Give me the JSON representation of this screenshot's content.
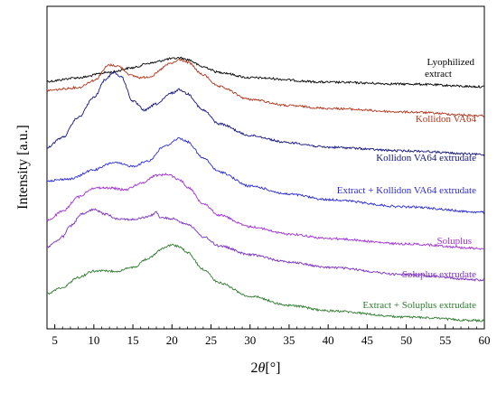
{
  "chart_data": {
    "type": "line",
    "title": "",
    "xlabel": "2θ[°]",
    "xlabel_parts": {
      "prefix": "2",
      "theta": "θ",
      "unit": "[°]"
    },
    "ylabel": "Intensity [a.u.]",
    "xlim": [
      4,
      60
    ],
    "xticks": [
      5,
      10,
      15,
      20,
      25,
      30,
      35,
      40,
      45,
      50,
      55,
      60
    ],
    "yticks_visible": false,
    "grid": false,
    "legend": "labels-beside-curves",
    "series": [
      {
        "name": "Lyophilized extract",
        "label_lines": [
          "Lyophilized",
          "extract"
        ],
        "color": "#000000",
        "points": [
          [
            4,
            90
          ],
          [
            8,
            86
          ],
          [
            12,
            80
          ],
          [
            15,
            75
          ],
          [
            17,
            70
          ],
          [
            20,
            65
          ],
          [
            21,
            64
          ],
          [
            22,
            66
          ],
          [
            24,
            74
          ],
          [
            26,
            80
          ],
          [
            30,
            86
          ],
          [
            40,
            91
          ],
          [
            50,
            93
          ],
          [
            60,
            96
          ]
        ]
      },
      {
        "name": "Kollidon VA64",
        "label_lines": [
          "Kollidon VA64"
        ],
        "color": "#b3341a",
        "points": [
          [
            4,
            100
          ],
          [
            8,
            97
          ],
          [
            10,
            89
          ],
          [
            12,
            72
          ],
          [
            13,
            73
          ],
          [
            15,
            84
          ],
          [
            16,
            86
          ],
          [
            17,
            85
          ],
          [
            20,
            70
          ],
          [
            21,
            66
          ],
          [
            22,
            69
          ],
          [
            24,
            83
          ],
          [
            26,
            96
          ],
          [
            30,
            110
          ],
          [
            35,
            117
          ],
          [
            40,
            120
          ],
          [
            50,
            124
          ],
          [
            60,
            128
          ]
        ]
      },
      {
        "name": "Kollidon VA64 extrudate",
        "label_lines": [
          "Kollidon VA64 extrudate"
        ],
        "color": "#141482",
        "points": [
          [
            4,
            163
          ],
          [
            6,
            152
          ],
          [
            8,
            130
          ],
          [
            10,
            108
          ],
          [
            11.5,
            88
          ],
          [
            12.5,
            80
          ],
          [
            13.5,
            85
          ],
          [
            15,
            112
          ],
          [
            16.5,
            122
          ],
          [
            18,
            115
          ],
          [
            20,
            103
          ],
          [
            21,
            99
          ],
          [
            22,
            104
          ],
          [
            24,
            122
          ],
          [
            26,
            137
          ],
          [
            30,
            150
          ],
          [
            35,
            158
          ],
          [
            40,
            163
          ],
          [
            50,
            167
          ],
          [
            60,
            171
          ]
        ]
      },
      {
        "name": "Extract + Kollidon VA64 extrudate",
        "label_lines": [
          "Extract + Kollidon VA64 extrudate"
        ],
        "color": "#2a2ad9",
        "points": [
          [
            4,
            200
          ],
          [
            7,
            198
          ],
          [
            10,
            188
          ],
          [
            12.5,
            180
          ],
          [
            15,
            184
          ],
          [
            17,
            178
          ],
          [
            19,
            162
          ],
          [
            21,
            153
          ],
          [
            22,
            157
          ],
          [
            24,
            175
          ],
          [
            26,
            190
          ],
          [
            30,
            206
          ],
          [
            35,
            215
          ],
          [
            40,
            221
          ],
          [
            50,
            229
          ],
          [
            60,
            235
          ]
        ]
      },
      {
        "name": "Soluplus",
        "label_lines": [
          "Soluplus"
        ],
        "color": "#a030d8",
        "points": [
          [
            4,
            244
          ],
          [
            6,
            234
          ],
          [
            8,
            218
          ],
          [
            10,
            208
          ],
          [
            12,
            208
          ],
          [
            14,
            210
          ],
          [
            16,
            203
          ],
          [
            18,
            194
          ],
          [
            19.5,
            193
          ],
          [
            21,
            199
          ],
          [
            22,
            207
          ],
          [
            24,
            225
          ],
          [
            26,
            238
          ],
          [
            30,
            251
          ],
          [
            35,
            259
          ],
          [
            40,
            264
          ],
          [
            50,
            270
          ],
          [
            60,
            275
          ]
        ]
      },
      {
        "name": "Soluplus extrudate",
        "label_lines": [
          "Soluplus extrudate"
        ],
        "color": "#7b2fc4",
        "points": [
          [
            4,
            274
          ],
          [
            5,
            268
          ],
          [
            6,
            262
          ],
          [
            7,
            250
          ],
          [
            8.5,
            237
          ],
          [
            10,
            232
          ],
          [
            11.5,
            237
          ],
          [
            13,
            242
          ],
          [
            15,
            243
          ],
          [
            17,
            240
          ],
          [
            18,
            235
          ],
          [
            18.5,
            241
          ],
          [
            20,
            242
          ],
          [
            22,
            248
          ],
          [
            24,
            262
          ],
          [
            26,
            272
          ],
          [
            30,
            282
          ],
          [
            35,
            290
          ],
          [
            40,
            296
          ],
          [
            50,
            304
          ],
          [
            60,
            310
          ]
        ]
      },
      {
        "name": "Extract + Soluplus extrudate",
        "label_lines": [
          "Extract + Soluplus extrudate"
        ],
        "color": "#2d7a2d",
        "points": [
          [
            4,
            325
          ],
          [
            6,
            318
          ],
          [
            8,
            307
          ],
          [
            10,
            300
          ],
          [
            13,
            300
          ],
          [
            15,
            296
          ],
          [
            17,
            286
          ],
          [
            19,
            274
          ],
          [
            20,
            271
          ],
          [
            21,
            273
          ],
          [
            22,
            280
          ],
          [
            24,
            298
          ],
          [
            26,
            313
          ],
          [
            30,
            328
          ],
          [
            35,
            338
          ],
          [
            40,
            344
          ],
          [
            50,
            351
          ],
          [
            60,
            355
          ]
        ]
      }
    ]
  }
}
